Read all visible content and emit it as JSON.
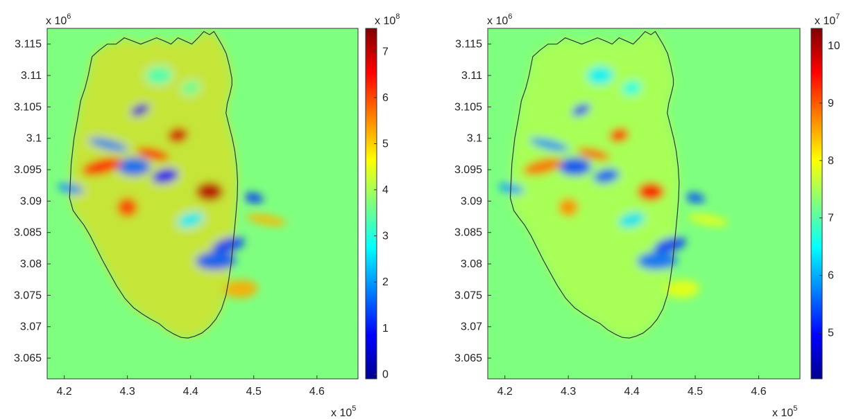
{
  "chart_data": [
    {
      "type": "heatmap",
      "title": "",
      "xlabel": "",
      "ylabel": "",
      "x_exponent": "x 10",
      "x_exponent_power": "5",
      "y_exponent": "x 10",
      "y_exponent_power": "6",
      "xlim": [
        4.173,
        4.665
      ],
      "ylim": [
        3.0617,
        3.1175
      ],
      "x_ticks": [
        4.2,
        4.3,
        4.4,
        4.5,
        4.6
      ],
      "x_tick_labels": [
        "4.2",
        "4.3",
        "4.4",
        "4.5",
        "4.6"
      ],
      "y_ticks": [
        3.065,
        3.07,
        3.075,
        3.08,
        3.085,
        3.09,
        3.095,
        3.1,
        3.105,
        3.11,
        3.115
      ],
      "y_tick_labels": [
        "3.065",
        "3.07",
        "3.075",
        "3.08",
        "3.085",
        "3.09",
        "3.095",
        "3.1",
        "3.105",
        "3.11",
        "3.115"
      ],
      "colorbar": {
        "colormap": "jet",
        "range": [
          -0.1,
          7.5
        ],
        "exponent": "x 10",
        "exponent_power": "8",
        "ticks": [
          0,
          1,
          2,
          3,
          4,
          5,
          6,
          7
        ],
        "tick_labels": [
          "0",
          "1",
          "2",
          "3",
          "4",
          "5",
          "6",
          "7"
        ],
        "background_value": 4.6
      },
      "features": [
        {
          "x": 4.32,
          "y": 3.1045,
          "v": 0.6
        },
        {
          "x": 4.36,
          "y": 3.094,
          "v": 0.9
        },
        {
          "x": 4.31,
          "y": 3.0955,
          "v": 1.6
        },
        {
          "x": 4.27,
          "y": 3.099,
          "v": 1.8
        },
        {
          "x": 4.38,
          "y": 3.1005,
          "v": 6.9
        },
        {
          "x": 4.43,
          "y": 3.0915,
          "v": 7.1
        },
        {
          "x": 4.34,
          "y": 3.0975,
          "v": 6.4
        },
        {
          "x": 4.26,
          "y": 3.0955,
          "v": 6.3
        },
        {
          "x": 4.3,
          "y": 3.089,
          "v": 6.1
        },
        {
          "x": 4.21,
          "y": 3.092,
          "v": 1.9
        },
        {
          "x": 4.46,
          "y": 3.083,
          "v": 1.3
        },
        {
          "x": 4.44,
          "y": 3.0805,
          "v": 1.5
        },
        {
          "x": 4.5,
          "y": 3.0905,
          "v": 1.2
        },
        {
          "x": 4.4,
          "y": 3.087,
          "v": 2.6
        },
        {
          "x": 4.48,
          "y": 3.076,
          "v": 5.3
        },
        {
          "x": 4.52,
          "y": 3.087,
          "v": 5.2
        },
        {
          "x": 4.4,
          "y": 3.108,
          "v": 3.5
        },
        {
          "x": 4.35,
          "y": 3.11,
          "v": 3.3
        }
      ]
    },
    {
      "type": "heatmap",
      "title": "",
      "xlabel": "",
      "ylabel": "",
      "x_exponent": "x 10",
      "x_exponent_power": "5",
      "y_exponent": "x 10",
      "y_exponent_power": "6",
      "xlim": [
        4.173,
        4.665
      ],
      "ylim": [
        3.0617,
        3.1175
      ],
      "x_ticks": [
        4.2,
        4.3,
        4.4,
        4.5,
        4.6
      ],
      "x_tick_labels": [
        "4.2",
        "4.3",
        "4.4",
        "4.5",
        "4.6"
      ],
      "y_ticks": [
        3.065,
        3.07,
        3.075,
        3.08,
        3.085,
        3.09,
        3.095,
        3.1,
        3.105,
        3.11,
        3.115
      ],
      "y_tick_labels": [
        "3.065",
        "3.07",
        "3.075",
        "3.08",
        "3.085",
        "3.09",
        "3.095",
        "3.1",
        "3.105",
        "3.11",
        "3.115"
      ],
      "colorbar": {
        "colormap": "jet",
        "range": [
          4.2,
          10.3
        ],
        "exponent": "x 10",
        "exponent_power": "7",
        "ticks": [
          5,
          6,
          7,
          8,
          9,
          10
        ],
        "tick_labels": [
          "5",
          "6",
          "7",
          "8",
          "9",
          "10"
        ],
        "background_value": 7.4
      },
      "features": [
        {
          "x": 4.32,
          "y": 3.1045,
          "v": 5.2
        },
        {
          "x": 4.36,
          "y": 3.094,
          "v": 5.5
        },
        {
          "x": 4.31,
          "y": 3.0955,
          "v": 5.4
        },
        {
          "x": 4.27,
          "y": 3.099,
          "v": 5.8
        },
        {
          "x": 4.38,
          "y": 3.1005,
          "v": 9.2
        },
        {
          "x": 4.43,
          "y": 3.0915,
          "v": 9.4
        },
        {
          "x": 4.34,
          "y": 3.0975,
          "v": 9.0
        },
        {
          "x": 4.26,
          "y": 3.0955,
          "v": 8.9
        },
        {
          "x": 4.3,
          "y": 3.089,
          "v": 8.7
        },
        {
          "x": 4.21,
          "y": 3.092,
          "v": 5.9
        },
        {
          "x": 4.46,
          "y": 3.083,
          "v": 5.3
        },
        {
          "x": 4.44,
          "y": 3.0805,
          "v": 5.6
        },
        {
          "x": 4.5,
          "y": 3.0905,
          "v": 5.4
        },
        {
          "x": 4.4,
          "y": 3.087,
          "v": 6.3
        },
        {
          "x": 4.48,
          "y": 3.076,
          "v": 7.9
        },
        {
          "x": 4.52,
          "y": 3.087,
          "v": 7.9
        },
        {
          "x": 4.4,
          "y": 3.108,
          "v": 6.6
        },
        {
          "x": 4.35,
          "y": 3.11,
          "v": 6.4
        }
      ]
    }
  ],
  "coastline": [
    [
      4.2085,
      3.0905
    ],
    [
      4.211,
      3.096
    ],
    [
      4.2155,
      3.1
    ],
    [
      4.221,
      3.103
    ],
    [
      4.226,
      3.106
    ],
    [
      4.233,
      3.108
    ],
    [
      4.238,
      3.11
    ],
    [
      4.244,
      3.113
    ],
    [
      4.255,
      3.114
    ],
    [
      4.268,
      3.115
    ],
    [
      4.282,
      3.115
    ],
    [
      4.295,
      3.116
    ],
    [
      4.308,
      3.1155
    ],
    [
      4.321,
      3.115
    ],
    [
      4.334,
      3.1155
    ],
    [
      4.346,
      3.116
    ],
    [
      4.358,
      3.1155
    ],
    [
      4.369,
      3.115
    ],
    [
      4.38,
      3.116
    ],
    [
      4.391,
      3.1155
    ],
    [
      4.402,
      3.115
    ],
    [
      4.412,
      3.116
    ],
    [
      4.421,
      3.117
    ],
    [
      4.43,
      3.1165
    ],
    [
      4.437,
      3.117
    ],
    [
      4.443,
      3.116
    ],
    [
      4.45,
      3.1148
    ],
    [
      4.4565,
      3.1135
    ],
    [
      4.4615,
      3.1115
    ],
    [
      4.4655,
      3.1095
    ],
    [
      4.4655,
      3.1085
    ],
    [
      4.462,
      3.107
    ],
    [
      4.458,
      3.1055
    ],
    [
      4.456,
      3.104
    ],
    [
      4.461,
      3.102
    ],
    [
      4.466,
      3.1
    ],
    [
      4.47,
      3.098
    ],
    [
      4.473,
      3.0955
    ],
    [
      4.4745,
      3.093
    ],
    [
      4.4738,
      3.0905
    ],
    [
      4.4718,
      3.088
    ],
    [
      4.4695,
      3.0855
    ],
    [
      4.4668,
      3.0828
    ],
    [
      4.464,
      3.08
    ],
    [
      4.4605,
      3.0775
    ],
    [
      4.456,
      3.075
    ],
    [
      4.449,
      3.0728
    ],
    [
      4.44,
      3.0712
    ],
    [
      4.43,
      3.07
    ],
    [
      4.418,
      3.069
    ],
    [
      4.407,
      3.0685
    ],
    [
      4.396,
      3.0682
    ],
    [
      4.385,
      3.0683
    ],
    [
      4.374,
      3.0688
    ],
    [
      4.362,
      3.0695
    ],
    [
      4.35,
      3.0705
    ],
    [
      4.337,
      3.0712
    ],
    [
      4.324,
      3.072
    ],
    [
      4.31,
      3.073
    ],
    [
      4.296,
      3.0745
    ],
    [
      4.283,
      3.0765
    ],
    [
      4.272,
      3.0785
    ],
    [
      4.261,
      3.0805
    ],
    [
      4.251,
      3.0825
    ],
    [
      4.241,
      3.0845
    ],
    [
      4.231,
      3.0862
    ],
    [
      4.221,
      3.0875
    ],
    [
      4.214,
      3.0885
    ],
    [
      4.2085,
      3.0905
    ]
  ]
}
